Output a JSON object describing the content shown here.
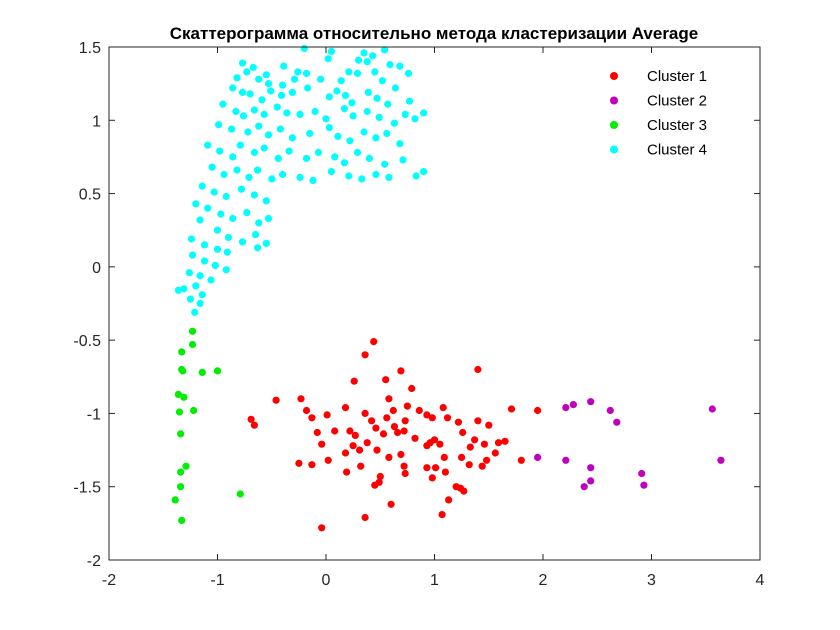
{
  "chart_data": {
    "type": "scatter",
    "title": "Скаттерограмма относительно метода кластеризации Average",
    "xlabel": "",
    "ylabel": "",
    "xlim": [
      -2,
      4
    ],
    "ylim": [
      -2,
      1.5
    ],
    "xticks": [
      "-2",
      "-1",
      "0",
      "1",
      "2",
      "3",
      "4"
    ],
    "yticks": [
      "-2",
      "-1.5",
      "-1",
      "-0.5",
      "0",
      "0.5",
      "1",
      "1.5"
    ],
    "grid": false,
    "legend_position": "top-right",
    "series": [
      {
        "name": "Cluster 1",
        "color": "#ff0000",
        "points": [
          [
            0.44,
            -0.51
          ],
          [
            0.36,
            -0.6
          ],
          [
            0.26,
            -0.78
          ],
          [
            0.69,
            -0.71
          ],
          [
            0.55,
            -0.77
          ],
          [
            1.4,
            -0.7
          ],
          [
            0.58,
            -0.9
          ],
          [
            0.75,
            -0.95
          ],
          [
            0.79,
            -0.83
          ],
          [
            -0.46,
            -0.91
          ],
          [
            -0.23,
            -0.9
          ],
          [
            -0.18,
            -0.98
          ],
          [
            -0.13,
            -1.03
          ],
          [
            -0.66,
            -1.08
          ],
          [
            -0.69,
            -1.04
          ],
          [
            0.01,
            -1.01
          ],
          [
            0.18,
            -0.96
          ],
          [
            0.36,
            -1.0
          ],
          [
            0.42,
            -1.05
          ],
          [
            0.56,
            -1.03
          ],
          [
            0.62,
            -0.98
          ],
          [
            0.73,
            -1.05
          ],
          [
            0.86,
            -0.98
          ],
          [
            0.93,
            -1.01
          ],
          [
            0.98,
            -1.03
          ],
          [
            1.08,
            -0.96
          ],
          [
            1.12,
            -1.03
          ],
          [
            1.22,
            -1.06
          ],
          [
            1.4,
            -1.05
          ],
          [
            1.5,
            -1.08
          ],
          [
            1.71,
            -0.97
          ],
          [
            1.95,
            -0.98
          ],
          [
            -0.08,
            -1.13
          ],
          [
            0.08,
            -1.12
          ],
          [
            0.22,
            -1.12
          ],
          [
            0.27,
            -1.15
          ],
          [
            0.31,
            -1.25
          ],
          [
            0.38,
            -1.2
          ],
          [
            0.46,
            -1.1
          ],
          [
            0.53,
            -1.14
          ],
          [
            0.63,
            -1.09
          ],
          [
            0.66,
            -1.13
          ],
          [
            0.72,
            -1.12
          ],
          [
            0.82,
            -1.17
          ],
          [
            0.96,
            -1.2
          ],
          [
            1.0,
            -1.18
          ],
          [
            1.05,
            -1.21
          ],
          [
            1.26,
            -1.13
          ],
          [
            1.37,
            -1.18
          ],
          [
            1.46,
            -1.21
          ],
          [
            1.59,
            -1.2
          ],
          [
            1.65,
            -1.19
          ],
          [
            -0.04,
            -1.21
          ],
          [
            0.18,
            -1.27
          ],
          [
            0.25,
            -1.22
          ],
          [
            0.47,
            -1.25
          ],
          [
            0.58,
            -1.3
          ],
          [
            0.69,
            -1.28
          ],
          [
            0.93,
            -1.22
          ],
          [
            1.09,
            -1.3
          ],
          [
            1.25,
            -1.3
          ],
          [
            1.33,
            -1.23
          ],
          [
            1.48,
            -1.32
          ],
          [
            1.56,
            -1.27
          ],
          [
            -0.25,
            -1.34
          ],
          [
            -0.13,
            -1.35
          ],
          [
            0.02,
            -1.32
          ],
          [
            0.19,
            -1.4
          ],
          [
            0.32,
            -1.36
          ],
          [
            0.72,
            -1.36
          ],
          [
            0.93,
            -1.37
          ],
          [
            1.01,
            -1.37
          ],
          [
            1.32,
            -1.35
          ],
          [
            1.44,
            -1.36
          ],
          [
            0.5,
            -1.43
          ],
          [
            0.73,
            -1.41
          ],
          [
            0.98,
            -1.44
          ],
          [
            1.1,
            -1.4
          ],
          [
            1.8,
            -1.32
          ],
          [
            0.49,
            -1.47
          ],
          [
            0.45,
            -1.49
          ],
          [
            1.2,
            -1.5
          ],
          [
            1.24,
            -1.51
          ],
          [
            1.27,
            -1.53
          ],
          [
            1.13,
            -1.59
          ],
          [
            0.6,
            -1.62
          ],
          [
            1.07,
            -1.69
          ],
          [
            0.36,
            -1.71
          ],
          [
            -0.04,
            -1.78
          ]
        ]
      },
      {
        "name": "Cluster 2",
        "color": "#bf00bf",
        "points": [
          [
            2.21,
            -0.96
          ],
          [
            2.28,
            -0.94
          ],
          [
            2.44,
            -0.92
          ],
          [
            2.62,
            -0.98
          ],
          [
            2.68,
            -1.06
          ],
          [
            3.56,
            -0.97
          ],
          [
            1.95,
            -1.3
          ],
          [
            2.21,
            -1.32
          ],
          [
            2.44,
            -1.37
          ],
          [
            2.91,
            -1.41
          ],
          [
            3.64,
            -1.32
          ],
          [
            2.44,
            -1.46
          ],
          [
            2.38,
            -1.5
          ],
          [
            2.93,
            -1.49
          ]
        ]
      },
      {
        "name": "Cluster 3",
        "color": "#00ee00",
        "points": [
          [
            -1.23,
            -0.44
          ],
          [
            -1.23,
            -0.53
          ],
          [
            -1.33,
            -0.58
          ],
          [
            -1.33,
            -0.7
          ],
          [
            -1.32,
            -0.71
          ],
          [
            -1.14,
            -0.72
          ],
          [
            -1.0,
            -0.71
          ],
          [
            -1.36,
            -0.87
          ],
          [
            -1.31,
            -0.89
          ],
          [
            -1.22,
            -0.98
          ],
          [
            -1.35,
            -0.99
          ],
          [
            -1.34,
            -1.14
          ],
          [
            -1.29,
            -1.36
          ],
          [
            -1.34,
            -1.4
          ],
          [
            -1.34,
            -1.5
          ],
          [
            -0.79,
            -1.55
          ],
          [
            -1.39,
            -1.59
          ],
          [
            -1.33,
            -1.73
          ]
        ]
      },
      {
        "name": "Cluster 4",
        "color": "#00ffff",
        "points": [
          [
            -0.2,
            1.49
          ],
          [
            0.05,
            1.47
          ],
          [
            0.35,
            1.46
          ],
          [
            0.43,
            1.44
          ],
          [
            0.54,
            1.48
          ],
          [
            -0.77,
            1.39
          ],
          [
            -0.67,
            1.36
          ],
          [
            -0.39,
            1.37
          ],
          [
            -0.26,
            1.33
          ],
          [
            0.02,
            1.42
          ],
          [
            0.3,
            1.41
          ],
          [
            0.38,
            1.4
          ],
          [
            0.59,
            1.38
          ],
          [
            0.68,
            1.37
          ],
          [
            0.76,
            1.32
          ],
          [
            -0.82,
            1.29
          ],
          [
            -0.73,
            1.33
          ],
          [
            -0.62,
            1.28
          ],
          [
            -0.55,
            1.31
          ],
          [
            -0.53,
            1.25
          ],
          [
            -0.4,
            1.24
          ],
          [
            -0.29,
            1.28
          ],
          [
            -0.18,
            1.32
          ],
          [
            -0.05,
            1.28
          ],
          [
            0.14,
            1.27
          ],
          [
            0.21,
            1.33
          ],
          [
            0.29,
            1.32
          ],
          [
            0.45,
            1.33
          ],
          [
            0.52,
            1.27
          ],
          [
            0.64,
            1.22
          ],
          [
            -0.86,
            1.22
          ],
          [
            -0.77,
            1.19
          ],
          [
            -0.7,
            1.18
          ],
          [
            -0.59,
            1.14
          ],
          [
            -0.51,
            1.2
          ],
          [
            -0.41,
            1.17
          ],
          [
            -0.31,
            1.19
          ],
          [
            -0.17,
            1.22
          ],
          [
            0.03,
            1.16
          ],
          [
            0.1,
            1.2
          ],
          [
            0.18,
            1.17
          ],
          [
            0.24,
            1.12
          ],
          [
            0.39,
            1.19
          ],
          [
            0.47,
            1.15
          ],
          [
            0.57,
            1.11
          ],
          [
            0.77,
            1.13
          ],
          [
            -0.95,
            1.11
          ],
          [
            -0.83,
            1.06
          ],
          [
            -0.76,
            1.03
          ],
          [
            -0.66,
            1.07
          ],
          [
            -0.57,
            1.04
          ],
          [
            -0.45,
            1.09
          ],
          [
            -0.36,
            1.05
          ],
          [
            -0.24,
            1.04
          ],
          [
            -0.1,
            1.06
          ],
          [
            0.0,
            1.01
          ],
          [
            0.17,
            1.08
          ],
          [
            0.25,
            1.03
          ],
          [
            0.38,
            1.06
          ],
          [
            0.49,
            1.02
          ],
          [
            0.63,
            0.98
          ],
          [
            0.73,
            1.04
          ],
          [
            0.82,
            1.01
          ],
          [
            0.9,
            1.05
          ],
          [
            -0.99,
            0.97
          ],
          [
            -0.87,
            0.94
          ],
          [
            -0.72,
            0.92
          ],
          [
            -0.62,
            0.96
          ],
          [
            -0.53,
            0.9
          ],
          [
            -0.42,
            0.94
          ],
          [
            -0.31,
            0.88
          ],
          [
            -0.15,
            0.91
          ],
          [
            0.03,
            0.95
          ],
          [
            0.11,
            0.89
          ],
          [
            0.22,
            0.86
          ],
          [
            0.35,
            0.92
          ],
          [
            0.46,
            0.88
          ],
          [
            0.56,
            0.91
          ],
          [
            0.68,
            0.84
          ],
          [
            -1.09,
            0.83
          ],
          [
            -0.98,
            0.79
          ],
          [
            -0.86,
            0.75
          ],
          [
            -0.79,
            0.83
          ],
          [
            -0.66,
            0.78
          ],
          [
            -0.57,
            0.81
          ],
          [
            -0.44,
            0.74
          ],
          [
            -0.34,
            0.79
          ],
          [
            -0.18,
            0.74
          ],
          [
            -0.07,
            0.78
          ],
          [
            0.08,
            0.75
          ],
          [
            0.17,
            0.71
          ],
          [
            0.29,
            0.78
          ],
          [
            0.4,
            0.74
          ],
          [
            0.54,
            0.7
          ],
          [
            0.71,
            0.73
          ],
          [
            -1.05,
            0.68
          ],
          [
            -0.94,
            0.63
          ],
          [
            -0.82,
            0.66
          ],
          [
            -0.71,
            0.61
          ],
          [
            -0.63,
            0.66
          ],
          [
            -0.5,
            0.6
          ],
          [
            -0.4,
            0.63
          ],
          [
            -0.24,
            0.61
          ],
          [
            -0.12,
            0.59
          ],
          [
            0.05,
            0.65
          ],
          [
            0.21,
            0.62
          ],
          [
            0.33,
            0.6
          ],
          [
            0.46,
            0.63
          ],
          [
            0.58,
            0.61
          ],
          [
            0.83,
            0.62
          ],
          [
            0.9,
            0.65
          ],
          [
            -1.14,
            0.55
          ],
          [
            -1.03,
            0.51
          ],
          [
            -0.92,
            0.48
          ],
          [
            -0.78,
            0.53
          ],
          [
            -0.66,
            0.49
          ],
          [
            -0.55,
            0.45
          ],
          [
            -1.2,
            0.43
          ],
          [
            -1.09,
            0.4
          ],
          [
            -0.97,
            0.36
          ],
          [
            -0.86,
            0.33
          ],
          [
            -0.73,
            0.37
          ],
          [
            -0.62,
            0.3
          ],
          [
            -0.53,
            0.33
          ],
          [
            -1.16,
            0.32
          ],
          [
            -1.0,
            0.25
          ],
          [
            -0.9,
            0.2
          ],
          [
            -0.77,
            0.17
          ],
          [
            -0.65,
            0.22
          ],
          [
            -1.24,
            0.19
          ],
          [
            -1.12,
            0.15
          ],
          [
            -1.0,
            0.12
          ],
          [
            -0.91,
            0.1
          ],
          [
            -0.63,
            0.13
          ],
          [
            -0.55,
            0.16
          ],
          [
            -1.23,
            0.08
          ],
          [
            -1.12,
            0.04
          ],
          [
            -1.02,
            0.01
          ],
          [
            -0.92,
            -0.02
          ],
          [
            -1.26,
            -0.04
          ],
          [
            -1.16,
            -0.06
          ],
          [
            -1.06,
            -0.09
          ],
          [
            -1.31,
            -0.15
          ],
          [
            -1.2,
            -0.13
          ],
          [
            -1.14,
            -0.19
          ],
          [
            -1.25,
            -0.22
          ],
          [
            -1.16,
            -0.25
          ],
          [
            -1.21,
            -0.31
          ],
          [
            -1.36,
            -0.16
          ]
        ]
      }
    ]
  }
}
